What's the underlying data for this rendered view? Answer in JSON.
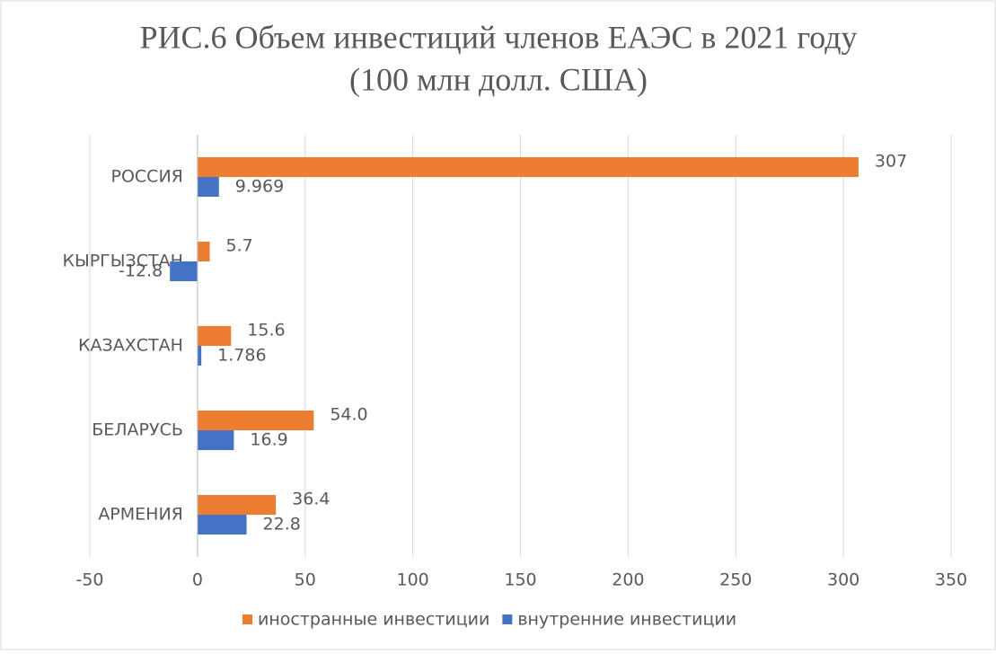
{
  "chart_data": {
    "type": "barh",
    "title": "РИС.6 Объем инвестиций членов ЕАЭС в 2021 году",
    "subtitle": "(100 млн долл. США)",
    "categories": [
      "РОССИЯ",
      "КЫРГЫЗСТАН",
      "КАЗАХСТАН",
      "БЕЛАРУСЬ",
      "АРМЕНИЯ"
    ],
    "series": [
      {
        "name": "иностранные инвестиции",
        "color": "#ed7d31",
        "values": [
          307,
          5.7,
          15.6,
          54.0,
          36.4
        ],
        "value_labels": [
          "307",
          "5.7",
          "15.6",
          "54.0",
          "36.4"
        ]
      },
      {
        "name": "внутренние инвестиции",
        "color": "#4472c4",
        "values": [
          9.969,
          -12.8,
          1.786,
          16.9,
          22.8
        ],
        "value_labels": [
          "9.969",
          "-12.8",
          "1.786",
          "16.9",
          "22.8"
        ]
      }
    ],
    "xlim": [
      -50,
      350
    ],
    "xticks": [
      -50,
      0,
      50,
      100,
      150,
      200,
      250,
      300,
      350
    ],
    "grid": true,
    "legend": "bottom"
  }
}
